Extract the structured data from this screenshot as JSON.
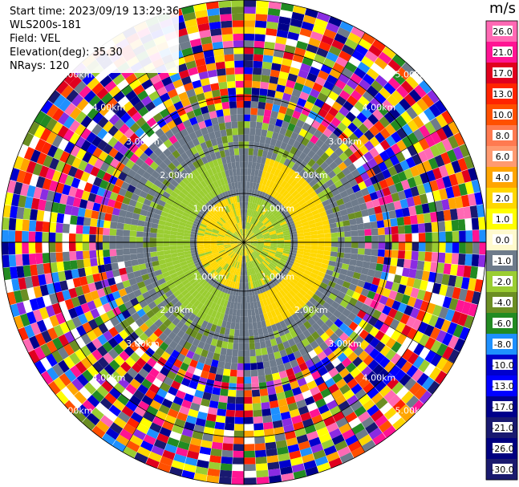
{
  "info": {
    "start_time": "Start time: 2023/09/19 13:29:36",
    "instrument": "WLS200s-181",
    "field": "Field: VEL",
    "elevation": "Elevation(deg): 35.30",
    "nrays": "NRays: 120"
  },
  "colorbar": {
    "unit": "m/s",
    "labels": [
      "26.0",
      "21.0",
      "17.0",
      "13.0",
      "10.0",
      "8.0",
      "6.0",
      "4.0",
      "2.0",
      "1.0",
      "0.0",
      "-1.0",
      "-2.0",
      "-4.0",
      "-6.0",
      "-8.0",
      "-10.0",
      "-13.0",
      "-17.0",
      "-21.0",
      "-26.0",
      "-30.0"
    ],
    "colors": [
      "#ff69b4",
      "#ff1493",
      "#e0001e",
      "#ff2400",
      "#ff5000",
      "#ff7a50",
      "#ff9a70",
      "#ffa500",
      "#ffd700",
      "#ffff00",
      "#fffacd",
      "#6e7b8b",
      "#9acd32",
      "#6b8e23",
      "#228b22",
      "#1e90ff",
      "#0000cd",
      "#0000ff",
      "#00008b",
      "#191970",
      "#000080",
      "#1a1a6e"
    ]
  },
  "rings": [
    {
      "label": "1.00km"
    },
    {
      "label": "2.00km"
    },
    {
      "label": "3.00km"
    },
    {
      "label": "4.00km"
    },
    {
      "label": "5.00km"
    }
  ],
  "ppi": {
    "field": "VEL",
    "nrays": 120,
    "inner_colors": [
      "#6e7b8b",
      "#9acd32",
      "#ffd700",
      "#6b8e23"
    ],
    "noise_colors": [
      "#ff69b4",
      "#ff1493",
      "#e0001e",
      "#ff2400",
      "#ff5000",
      "#ffa500",
      "#ffd700",
      "#ffff00",
      "#6e7b8b",
      "#9acd32",
      "#6b8e23",
      "#228b22",
      "#1e90ff",
      "#0000cd",
      "#0000ff",
      "#00008b",
      "#191970",
      "#8a2be2",
      "#ffffff"
    ]
  }
}
